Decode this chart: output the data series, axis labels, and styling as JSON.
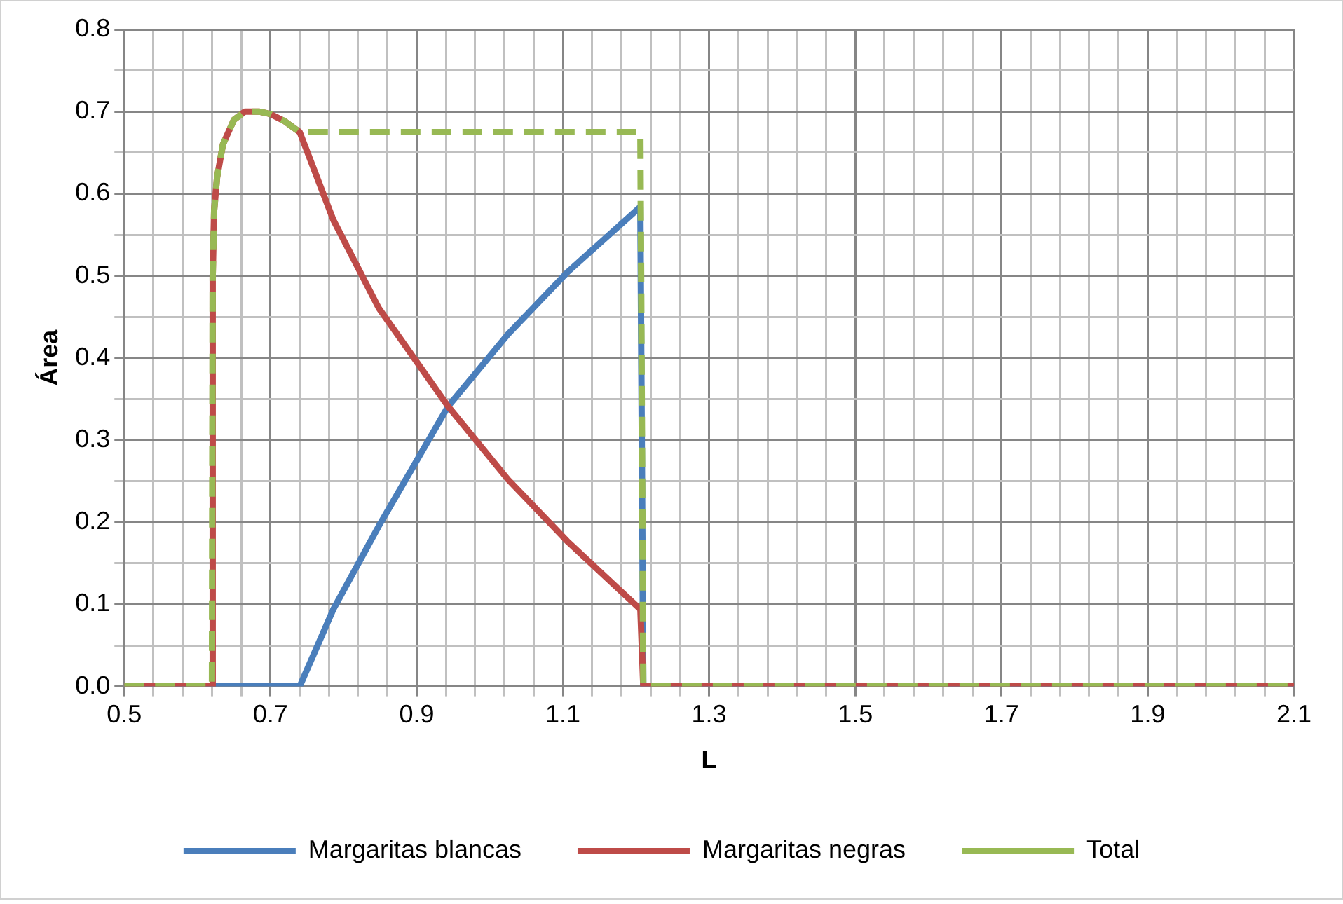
{
  "chart_data": {
    "type": "line",
    "xlabel": "L",
    "ylabel": "Área",
    "xlim": [
      0.5,
      2.1
    ],
    "ylim": [
      0,
      0.8
    ],
    "xticks": [
      0.5,
      {
        "value": 0.54,
        "label": null
      },
      {
        "value": 0.58,
        "label": null
      },
      {
        "value": 0.62,
        "label": null
      },
      {
        "value": 0.66,
        "label": null
      },
      0.7,
      {
        "value": 0.74,
        "label": null
      },
      {
        "value": 0.78,
        "label": null
      },
      {
        "value": 0.82,
        "label": null
      },
      {
        "value": 0.86,
        "label": null
      },
      0.9,
      {
        "value": 0.94,
        "label": null
      },
      {
        "value": 0.98,
        "label": null
      },
      {
        "value": 1.02,
        "label": null
      },
      {
        "value": 1.06,
        "label": null
      },
      1.1,
      {
        "value": 1.14,
        "label": null
      },
      {
        "value": 1.18,
        "label": null
      },
      {
        "value": 1.22,
        "label": null
      },
      {
        "value": 1.26,
        "label": null
      },
      1.3,
      {
        "value": 1.34,
        "label": null
      },
      {
        "value": 1.38,
        "label": null
      },
      {
        "value": 1.42,
        "label": null
      },
      {
        "value": 1.46,
        "label": null
      },
      1.5,
      {
        "value": 1.54,
        "label": null
      },
      {
        "value": 1.58,
        "label": null
      },
      {
        "value": 1.62,
        "label": null
      },
      {
        "value": 1.66,
        "label": null
      },
      1.7,
      {
        "value": 1.74,
        "label": null
      },
      {
        "value": 1.78,
        "label": null
      },
      {
        "value": 1.82,
        "label": null
      },
      {
        "value": 1.86,
        "label": null
      },
      1.9,
      {
        "value": 1.94,
        "label": null
      },
      {
        "value": 1.98,
        "label": null
      },
      {
        "value": 2.02,
        "label": null
      },
      {
        "value": 2.06,
        "label": null
      },
      2.1
    ],
    "yticks": [
      {
        "value": 0,
        "label": "0.0"
      },
      {
        "value": 0.05,
        "label": null
      },
      0.1,
      {
        "value": 0.15,
        "label": null
      },
      0.2,
      {
        "value": 0.25,
        "label": null
      },
      0.3,
      {
        "value": 0.35,
        "label": null
      },
      0.4,
      {
        "value": 0.45,
        "label": null
      },
      0.5,
      {
        "value": 0.55,
        "label": null
      },
      0.6,
      {
        "value": 0.65,
        "label": null
      },
      0.7,
      {
        "value": 0.75,
        "label": null
      },
      0.8
    ],
    "grid": true,
    "legend": "bottom",
    "marker": "none",
    "series": [
      {
        "name": "Margaritas blancas",
        "color": "#4a7ebb",
        "line_style": "solid",
        "x": [
          0.5,
          0.62,
          0.74,
          0.786,
          0.848,
          0.943,
          1.025,
          1.107,
          1.206,
          1.21,
          2.1
        ],
        "values": [
          0,
          0,
          0,
          0.094,
          0.195,
          0.341,
          0.429,
          0.505,
          0.584,
          0,
          0
        ]
      },
      {
        "name": "Margaritas negras",
        "color": "#be4b48",
        "line_style": "solid",
        "x": [
          0.5,
          0.62,
          0.621,
          0.623,
          0.627,
          0.635,
          0.65,
          0.665,
          0.684,
          0.7,
          0.72,
          0.74,
          0.786,
          0.848,
          0.943,
          1.025,
          1.107,
          1.206,
          1.21,
          2.1
        ],
        "values": [
          0,
          0,
          0.5,
          0.58,
          0.62,
          0.66,
          0.69,
          0.7,
          0.7,
          0.697,
          0.688,
          0.675,
          0.568,
          0.461,
          0.341,
          0.252,
          0.176,
          0.094,
          0,
          0
        ]
      },
      {
        "name": "Total",
        "color": "#98b954",
        "line_style": "dashed",
        "x": [
          0.5,
          0.62,
          0.621,
          0.623,
          0.627,
          0.635,
          0.65,
          0.665,
          0.684,
          0.7,
          0.72,
          0.74,
          1.206,
          1.21,
          2.1
        ],
        "values": [
          0,
          0,
          0.5,
          0.58,
          0.62,
          0.66,
          0.69,
          0.7,
          0.7,
          0.697,
          0.688,
          0.675,
          0.675,
          0,
          0
        ]
      }
    ]
  }
}
